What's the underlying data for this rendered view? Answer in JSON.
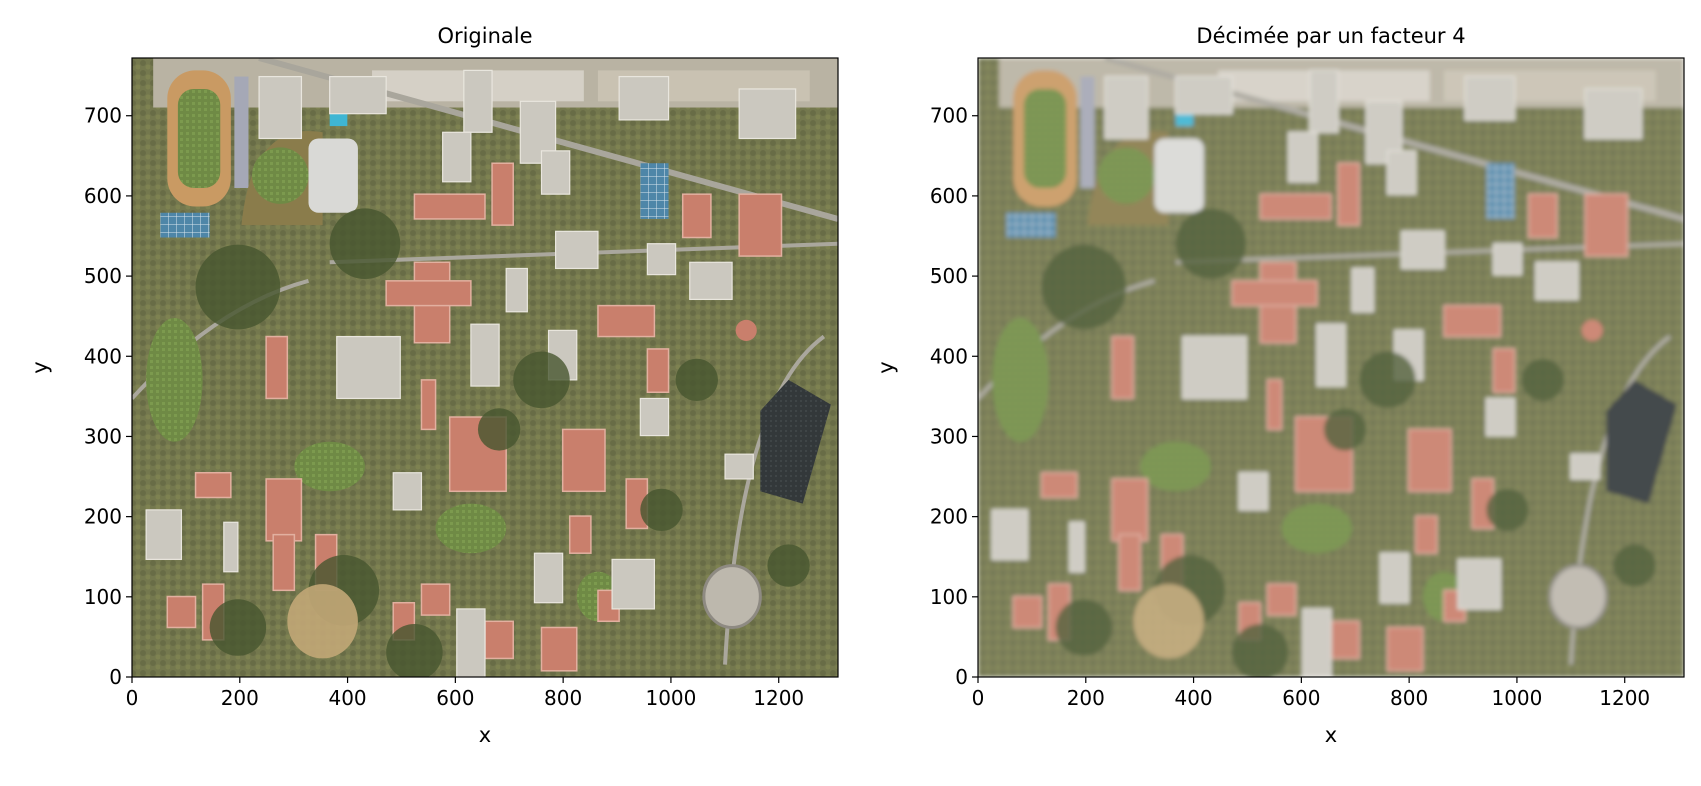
{
  "chart_data": [
    {
      "type": "image",
      "title": "Originale",
      "xlabel": "x",
      "ylabel": "y",
      "xlim": [
        0,
        1310
      ],
      "ylim": [
        0,
        772
      ],
      "xticks": [
        0,
        200,
        400,
        600,
        800,
        1000,
        1200
      ],
      "yticks": [
        0,
        100,
        200,
        300,
        400,
        500,
        600,
        700
      ],
      "grid": false,
      "image_content": "aerial-photo-campus"
    },
    {
      "type": "image",
      "title": "Décimée par un facteur 4",
      "xlabel": "x",
      "ylabel": "y",
      "xlim": [
        0,
        1310
      ],
      "ylim": [
        0,
        772
      ],
      "xticks": [
        0,
        200,
        400,
        600,
        800,
        1000,
        1200
      ],
      "yticks": [
        0,
        100,
        200,
        300,
        400,
        500,
        600,
        700
      ],
      "grid": false,
      "image_content": "aerial-photo-campus-decimated"
    }
  ]
}
